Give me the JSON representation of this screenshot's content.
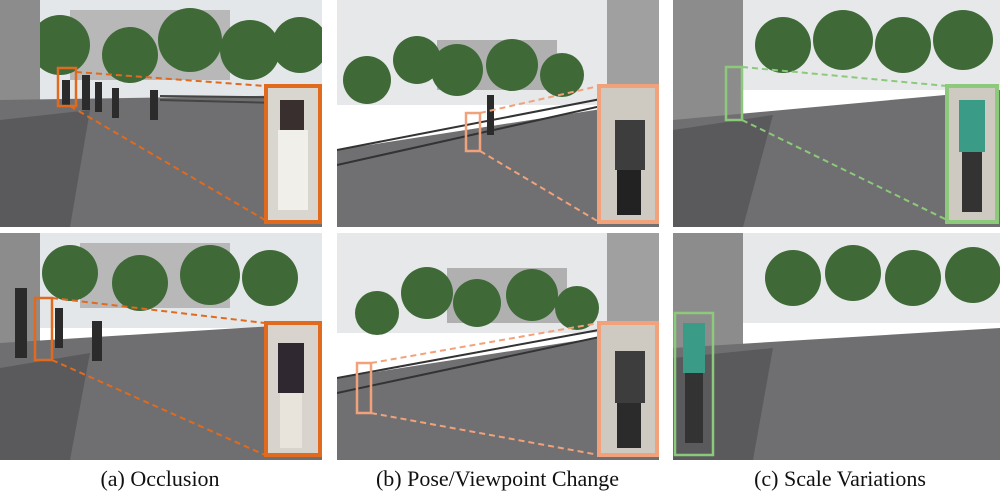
{
  "figure": {
    "captions": {
      "a": "(a) Occlusion",
      "b": "(b) Pose/Viewpoint Change",
      "c": "(c) Scale Variations"
    }
  },
  "colors": {
    "occlusion_box": "#e06a1e",
    "pose_box": "#f2a27a",
    "scale_box": "#8cc97a",
    "sky": "#e4e7ea",
    "pavement": "#6f6f72",
    "trees": "#3f6a38",
    "building": "#9a9a9a"
  },
  "icons": [
    "person-silhouette",
    "tree",
    "bicycle-row",
    "building"
  ]
}
